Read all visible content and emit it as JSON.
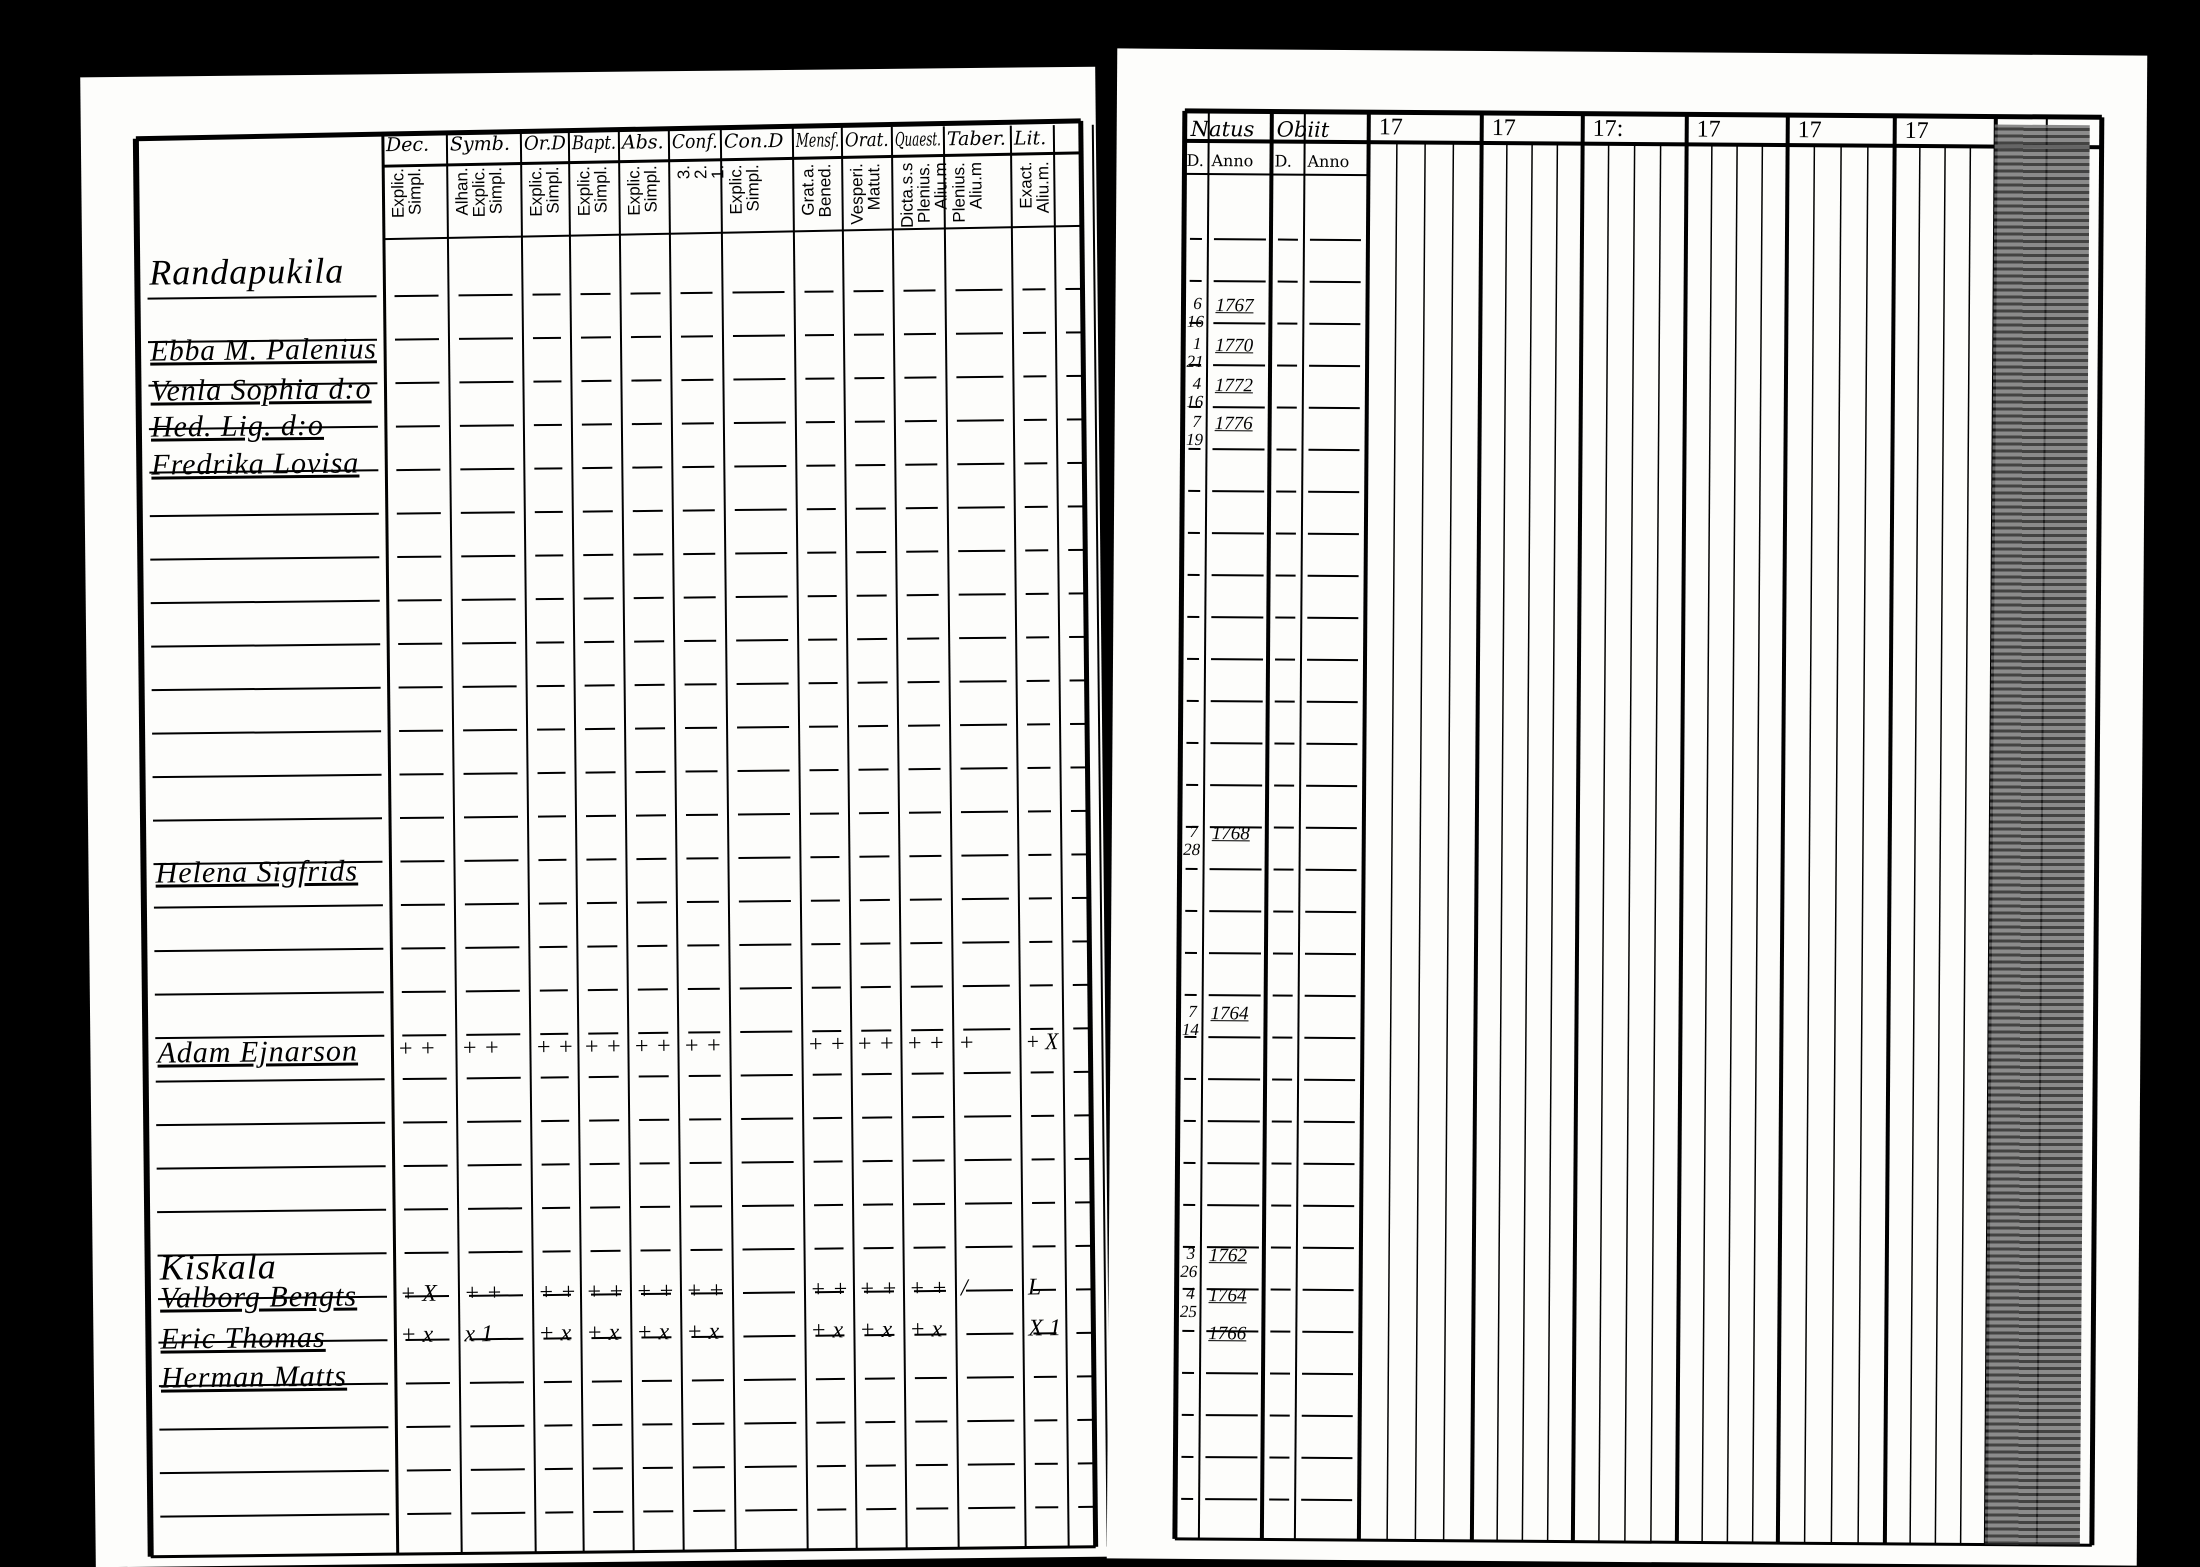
{
  "left_page": {
    "columns": [
      {
        "label": "Dec.",
        "sub": [
          "Explic.",
          "Simpl."
        ]
      },
      {
        "label": "Symb.",
        "sub": [
          "Alhan.",
          "Explic.",
          "Simpl."
        ]
      },
      {
        "label": "Or.D",
        "sub": [
          "Explic.",
          "Simpl."
        ]
      },
      {
        "label": "Bapt.",
        "sub": [
          "Explic.",
          "Simpl."
        ]
      },
      {
        "label": "Abs.",
        "sub": [
          "Explic.",
          "Simpl."
        ]
      },
      {
        "label": "Conf.",
        "sub": [
          "3.",
          "2.",
          "1."
        ]
      },
      {
        "label": "Con.D",
        "sub": [
          "Explic.",
          "Simpl."
        ]
      },
      {
        "label": "Mensf.",
        "sub": [
          "Grat.a.",
          "Bened."
        ]
      },
      {
        "label": "Orat.",
        "sub": [
          "Vesperi.",
          "Matut."
        ]
      },
      {
        "label": "Quaest.",
        "sub": [
          "Dicta.s.s",
          "Plenius.",
          "Aliu.m"
        ]
      },
      {
        "label": "Taber.",
        "sub": [
          "Plenius.",
          "Aliu.m"
        ]
      },
      {
        "label": "Lit.",
        "sub": [
          "Exact.",
          "Aliu.m."
        ]
      }
    ],
    "entries": [
      {
        "name": "Randapukila",
        "heading": true
      },
      {
        "name": "Ebba M. Palenius"
      },
      {
        "name": "Venla Sophia d:o"
      },
      {
        "name": "Hed. Lig. d:o"
      },
      {
        "name": "Fredrika Lovisa"
      },
      {
        "name": "Helena Sigfrids"
      },
      {
        "name": "Adam Ejnarson",
        "marks": [
          "+ +",
          "+ +",
          "+ +",
          "+ +",
          "+ +",
          "+ +",
          "",
          "+ +",
          "+ +",
          "+ +",
          "+",
          "+ X"
        ]
      },
      {
        "name": "Kiskala",
        "heading": true
      },
      {
        "name": "Valborg Bengts",
        "marks": [
          "+ X",
          "+ +",
          "+ +",
          "+ +",
          "+ +",
          "+ +",
          "",
          "+ +",
          "+ +",
          "+ +",
          "/",
          "L"
        ]
      },
      {
        "name": "Eric Thomas",
        "marks": [
          "+ x",
          "x 1",
          "+ x",
          "+ x",
          "+ x",
          "+ x",
          "",
          "+ x",
          "+ x",
          "+ x",
          "",
          "X 1"
        ]
      },
      {
        "name": "Herman Matts"
      }
    ]
  },
  "right_page": {
    "headers": {
      "natus": "Natus",
      "obiit": "Obiit",
      "sub_day": "D.",
      "sub_year": "Anno"
    },
    "year_columns": [
      "17",
      "17",
      "17:",
      "17",
      "17",
      "17"
    ],
    "births": [
      {
        "day": "6",
        "month": "16",
        "year": "1767"
      },
      {
        "day": "1",
        "month": "21",
        "year": "1770"
      },
      {
        "day": "4",
        "month": "16",
        "year": "1772"
      },
      {
        "day": "7",
        "month": "19",
        "year": "1776"
      },
      {
        "day": "7",
        "month": "28",
        "year": "1768"
      },
      {
        "day": "7",
        "month": "14",
        "year": "1764"
      },
      {
        "day": "3",
        "month": "26",
        "year": "1762"
      },
      {
        "day": "4",
        "month": "25",
        "year": "1764"
      },
      {
        "day": "",
        "month": "",
        "year": "1766"
      }
    ]
  }
}
